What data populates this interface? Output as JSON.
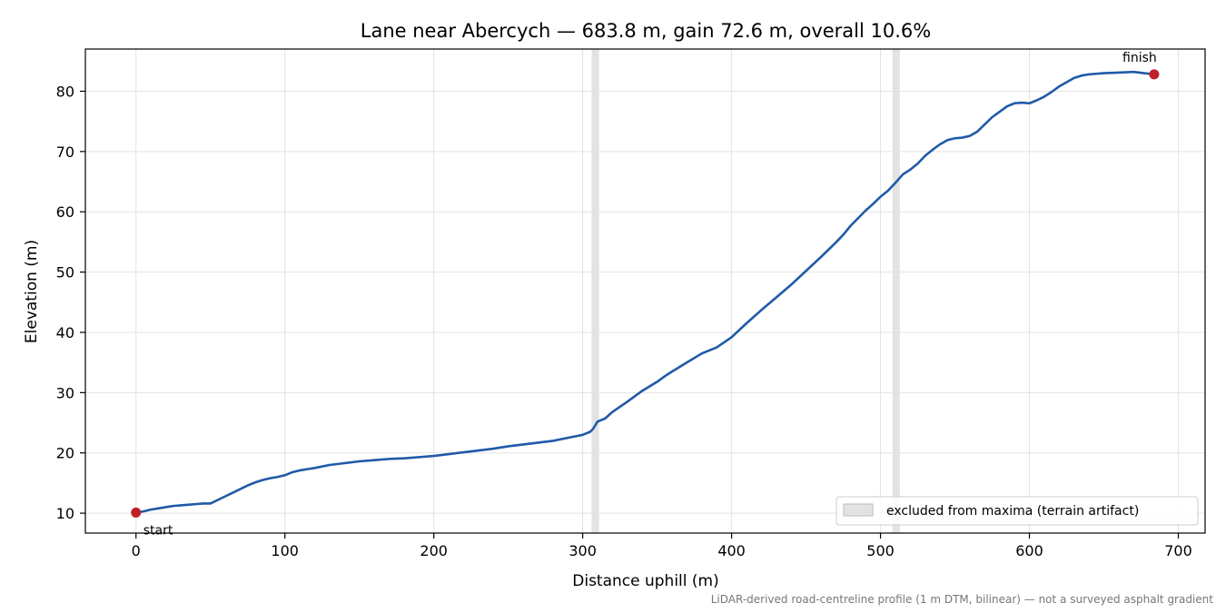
{
  "chart_data": {
    "type": "line",
    "title": "Lane near Abercych — 683.8 m, gain 72.6 m, overall 10.6%",
    "xlabel": "Distance uphill (m)",
    "ylabel": "Elevation (m)",
    "xlim": [
      -34,
      718
    ],
    "ylim": [
      6.7,
      87
    ],
    "xticks": [
      0,
      100,
      200,
      300,
      400,
      500,
      600,
      700
    ],
    "yticks": [
      10,
      20,
      30,
      40,
      50,
      60,
      70,
      80
    ],
    "grid": true,
    "legend_position": "lower-right",
    "legend": [
      {
        "label": "excluded from maxima (terrain artifact)",
        "swatch": "excluded-band"
      }
    ],
    "excluded_bands": [
      {
        "x0": 306,
        "x1": 311
      },
      {
        "x0": 508,
        "x1": 513
      }
    ],
    "series": [
      {
        "color": "#1f5aa8",
        "x": [
          0,
          5,
          10,
          15,
          20,
          25,
          30,
          35,
          40,
          45,
          50,
          55,
          60,
          65,
          70,
          75,
          80,
          85,
          90,
          95,
          100,
          105,
          110,
          115,
          120,
          130,
          140,
          150,
          160,
          170,
          180,
          190,
          200,
          210,
          220,
          230,
          240,
          250,
          260,
          270,
          280,
          290,
          300,
          305,
          307,
          310,
          315,
          320,
          330,
          340,
          350,
          355,
          360,
          370,
          380,
          390,
          400,
          410,
          420,
          430,
          440,
          450,
          460,
          470,
          475,
          480,
          490,
          495,
          500,
          505,
          510,
          515,
          520,
          525,
          530,
          535,
          540,
          545,
          550,
          555,
          560,
          565,
          570,
          575,
          580,
          585,
          590,
          595,
          600,
          605,
          610,
          615,
          620,
          625,
          630,
          635,
          640,
          650,
          660,
          670,
          677,
          683.8
        ],
        "y": [
          10.1,
          10.3,
          10.6,
          10.8,
          11.0,
          11.2,
          11.3,
          11.4,
          11.5,
          11.6,
          11.6,
          12.2,
          12.8,
          13.4,
          14.0,
          14.6,
          15.1,
          15.5,
          15.8,
          16.0,
          16.3,
          16.8,
          17.1,
          17.3,
          17.5,
          18.0,
          18.3,
          18.6,
          18.8,
          19.0,
          19.1,
          19.3,
          19.5,
          19.8,
          20.1,
          20.4,
          20.7,
          21.1,
          21.4,
          21.7,
          22.0,
          22.5,
          23.0,
          23.5,
          24.0,
          25.2,
          25.7,
          26.8,
          28.5,
          30.3,
          31.8,
          32.7,
          33.5,
          35.0,
          36.5,
          37.5,
          39.2,
          41.5,
          43.7,
          45.8,
          47.9,
          50.2,
          52.5,
          54.9,
          56.2,
          57.7,
          60.2,
          61.3,
          62.5,
          63.5,
          64.8,
          66.2,
          67.0,
          68.0,
          69.3,
          70.3,
          71.2,
          71.9,
          72.2,
          72.3,
          72.6,
          73.3,
          74.5,
          75.7,
          76.6,
          77.5,
          78.0,
          78.1,
          78.0,
          78.5,
          79.1,
          79.9,
          80.8,
          81.5,
          82.2,
          82.6,
          82.8,
          83.0,
          83.1,
          83.2,
          83.0,
          82.8
        ]
      }
    ],
    "markers": [
      {
        "x": 0,
        "y": 10.1,
        "label": "start",
        "color": "#c0202a"
      },
      {
        "x": 683.8,
        "y": 82.8,
        "label": "finish",
        "color": "#c0202a"
      }
    ],
    "footnote": "LiDAR-derived road-centreline profile (1 m DTM, bilinear) — not a surveyed asphalt gradient",
    "colors": {
      "line": "#1f5aa8",
      "marker": "#c0202a",
      "excluded_band": "#cccccc",
      "grid": "#e3e3e3"
    }
  }
}
